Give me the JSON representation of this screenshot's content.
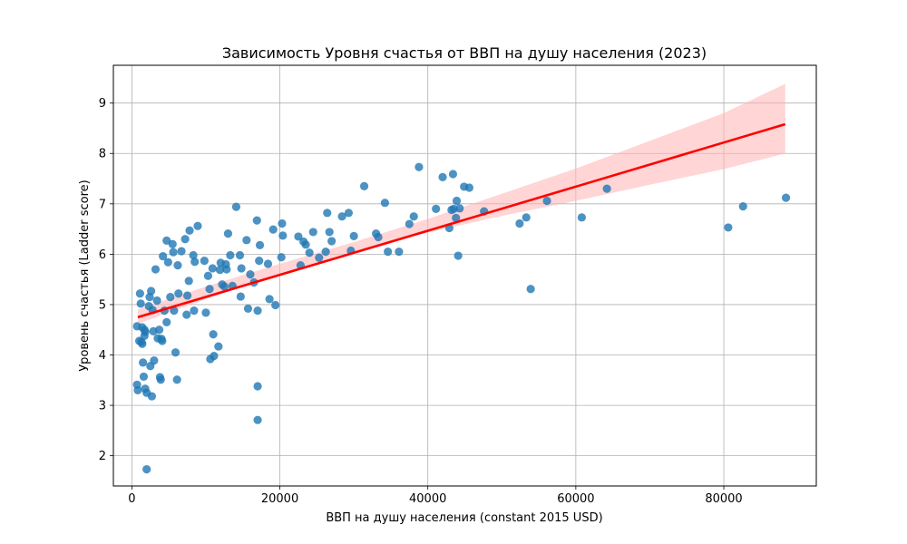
{
  "chart_data": {
    "type": "scatter",
    "title": "Зависимость Уровня счастья от ВВП на душу населения (2023)",
    "xlabel": "ВВП на душу населения (constant 2015 USD)",
    "ylabel": "Уровень счастья (Ladder score)",
    "xlim": [
      -2500,
      92500
    ],
    "ylim": [
      1.4,
      9.75
    ],
    "xticks": [
      0,
      20000,
      40000,
      60000,
      80000
    ],
    "yticks": [
      2,
      3,
      4,
      5,
      6,
      7,
      8,
      9
    ],
    "grid": true,
    "colors": {
      "points": "#1f77b4",
      "fit_line": "#ff0000",
      "ci_band": "#ffb3b3"
    },
    "regression": {
      "x": [
        800,
        88300
      ],
      "y": [
        4.75,
        8.58
      ],
      "ci_lower": [
        [
          800,
          4.62
        ],
        [
          10000,
          5.11
        ],
        [
          20000,
          5.61
        ],
        [
          30000,
          6.06
        ],
        [
          40000,
          6.43
        ],
        [
          50000,
          6.76
        ],
        [
          60000,
          7.06
        ],
        [
          70000,
          7.38
        ],
        [
          80000,
          7.69
        ],
        [
          88300,
          8.0
        ]
      ],
      "ci_upper": [
        [
          800,
          4.9
        ],
        [
          10000,
          5.36
        ],
        [
          20000,
          5.81
        ],
        [
          30000,
          6.24
        ],
        [
          40000,
          6.7
        ],
        [
          50000,
          7.2
        ],
        [
          60000,
          7.7
        ],
        [
          70000,
          8.25
        ],
        [
          80000,
          8.8
        ],
        [
          88300,
          9.38
        ]
      ]
    },
    "points": [
      [
        700,
        4.57
      ],
      [
        700,
        3.41
      ],
      [
        800,
        3.3
      ],
      [
        1000,
        4.28
      ],
      [
        1100,
        5.22
      ],
      [
        1200,
        5.02
      ],
      [
        1300,
        4.26
      ],
      [
        1400,
        4.55
      ],
      [
        1400,
        4.22
      ],
      [
        1500,
        3.85
      ],
      [
        1600,
        3.57
      ],
      [
        1700,
        4.5
      ],
      [
        1700,
        4.38
      ],
      [
        1800,
        4.46
      ],
      [
        1800,
        3.33
      ],
      [
        2000,
        1.73
      ],
      [
        2000,
        3.25
      ],
      [
        2300,
        4.97
      ],
      [
        2400,
        5.15
      ],
      [
        2500,
        3.78
      ],
      [
        2600,
        5.27
      ],
      [
        2700,
        3.18
      ],
      [
        2800,
        4.89
      ],
      [
        2900,
        4.47
      ],
      [
        3000,
        3.89
      ],
      [
        3200,
        5.7
      ],
      [
        3400,
        5.08
      ],
      [
        3500,
        4.33
      ],
      [
        3700,
        4.5
      ],
      [
        3800,
        3.56
      ],
      [
        3900,
        3.51
      ],
      [
        4000,
        4.32
      ],
      [
        4100,
        4.28
      ],
      [
        4200,
        5.96
      ],
      [
        4400,
        4.88
      ],
      [
        4700,
        6.27
      ],
      [
        4700,
        4.65
      ],
      [
        4900,
        5.84
      ],
      [
        5200,
        5.15
      ],
      [
        5500,
        6.2
      ],
      [
        5600,
        6.04
      ],
      [
        5700,
        4.88
      ],
      [
        5900,
        4.05
      ],
      [
        6100,
        3.51
      ],
      [
        6200,
        5.78
      ],
      [
        6300,
        5.22
      ],
      [
        6700,
        6.06
      ],
      [
        7200,
        6.3
      ],
      [
        7400,
        4.8
      ],
      [
        7500,
        5.18
      ],
      [
        7700,
        5.47
      ],
      [
        7800,
        6.47
      ],
      [
        8300,
        5.98
      ],
      [
        8400,
        4.88
      ],
      [
        8500,
        5.85
      ],
      [
        8900,
        6.56
      ],
      [
        9800,
        5.87
      ],
      [
        10000,
        4.84
      ],
      [
        10300,
        5.57
      ],
      [
        10500,
        5.31
      ],
      [
        10600,
        3.92
      ],
      [
        10900,
        5.72
      ],
      [
        11000,
        4.41
      ],
      [
        11100,
        3.98
      ],
      [
        11700,
        4.17
      ],
      [
        11900,
        5.69
      ],
      [
        12000,
        5.83
      ],
      [
        12200,
        5.4
      ],
      [
        12500,
        5.36
      ],
      [
        12700,
        5.8
      ],
      [
        12800,
        5.7
      ],
      [
        13000,
        6.41
      ],
      [
        13300,
        5.98
      ],
      [
        13600,
        5.37
      ],
      [
        14100,
        6.94
      ],
      [
        14600,
        5.98
      ],
      [
        14700,
        5.16
      ],
      [
        14800,
        5.72
      ],
      [
        15500,
        6.28
      ],
      [
        15700,
        4.92
      ],
      [
        16000,
        5.6
      ],
      [
        16500,
        5.44
      ],
      [
        16900,
        6.67
      ],
      [
        17000,
        4.88
      ],
      [
        17000,
        3.38
      ],
      [
        17000,
        2.71
      ],
      [
        17200,
        5.87
      ],
      [
        17300,
        6.18
      ],
      [
        18400,
        5.81
      ],
      [
        18600,
        5.11
      ],
      [
        19100,
        6.49
      ],
      [
        19400,
        4.99
      ],
      [
        20200,
        5.94
      ],
      [
        20300,
        6.61
      ],
      [
        20400,
        6.37
      ],
      [
        22500,
        6.35
      ],
      [
        22800,
        5.78
      ],
      [
        23200,
        6.25
      ],
      [
        23500,
        6.19
      ],
      [
        24000,
        6.03
      ],
      [
        24500,
        6.44
      ],
      [
        25300,
        5.93
      ],
      [
        26200,
        6.05
      ],
      [
        26400,
        6.82
      ],
      [
        26700,
        6.44
      ],
      [
        27000,
        6.26
      ],
      [
        28400,
        6.75
      ],
      [
        29300,
        6.82
      ],
      [
        29600,
        6.07
      ],
      [
        30000,
        6.36
      ],
      [
        31400,
        7.35
      ],
      [
        33000,
        6.41
      ],
      [
        33300,
        6.34
      ],
      [
        34200,
        7.02
      ],
      [
        34600,
        6.05
      ],
      [
        36100,
        6.05
      ],
      [
        37500,
        6.6
      ],
      [
        38100,
        6.75
      ],
      [
        38800,
        7.73
      ],
      [
        41100,
        6.9
      ],
      [
        42000,
        7.53
      ],
      [
        42900,
        6.52
      ],
      [
        43200,
        6.88
      ],
      [
        43400,
        7.59
      ],
      [
        43500,
        6.9
      ],
      [
        43800,
        6.72
      ],
      [
        43900,
        7.06
      ],
      [
        44100,
        5.97
      ],
      [
        44300,
        6.91
      ],
      [
        44900,
        7.34
      ],
      [
        45600,
        7.32
      ],
      [
        47600,
        6.85
      ],
      [
        52400,
        6.61
      ],
      [
        53300,
        6.73
      ],
      [
        53900,
        5.31
      ],
      [
        56100,
        7.06
      ],
      [
        60800,
        6.73
      ],
      [
        64200,
        7.3
      ],
      [
        80600,
        6.53
      ],
      [
        82600,
        6.95
      ],
      [
        88400,
        7.12
      ]
    ]
  }
}
